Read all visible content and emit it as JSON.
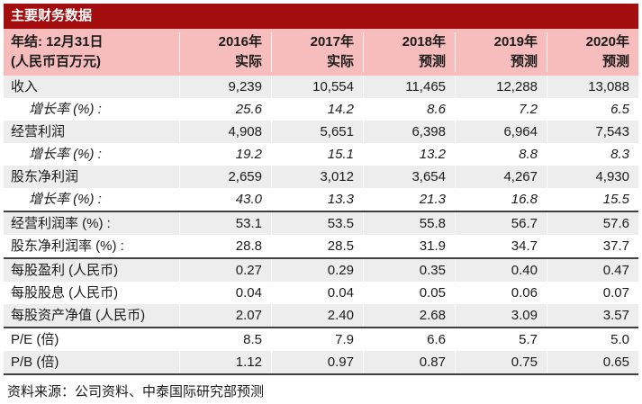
{
  "title": "主要财务数据",
  "header": {
    "label_line1": "年结: 12月31日",
    "label_line2": "(人民币百万元)",
    "columns": [
      {
        "year": "2016年",
        "status": "实际"
      },
      {
        "year": "2017年",
        "status": "实际"
      },
      {
        "year": "2018年",
        "status": "预测"
      },
      {
        "year": "2019年",
        "status": "预测"
      },
      {
        "year": "2020年",
        "status": "预测"
      }
    ]
  },
  "rows": [
    {
      "label": "收入",
      "values": [
        "9,239",
        "10,554",
        "11,465",
        "12,288",
        "13,088"
      ]
    },
    {
      "label": "增长率 (%) :",
      "values": [
        "25.6",
        "14.2",
        "8.6",
        "7.2",
        "6.5"
      ]
    },
    {
      "label": "经营利润",
      "values": [
        "4,908",
        "5,651",
        "6,398",
        "6,964",
        "7,543"
      ]
    },
    {
      "label": "增长率 (%) :",
      "values": [
        "19.2",
        "15.1",
        "13.2",
        "8.8",
        "8.3"
      ]
    },
    {
      "label": "股东净利润",
      "values": [
        "2,659",
        "3,012",
        "3,654",
        "4,267",
        "4,930"
      ]
    },
    {
      "label": "增长率 (%) :",
      "values": [
        "43.0",
        "13.3",
        "21.3",
        "16.8",
        "15.5"
      ]
    },
    {
      "label": "经营利润率 (%) :",
      "values": [
        "53.1",
        "53.5",
        "55.8",
        "56.7",
        "57.6"
      ]
    },
    {
      "label": "股东净利润率 (%) :",
      "values": [
        "28.8",
        "28.5",
        "31.9",
        "34.7",
        "37.7"
      ]
    },
    {
      "label": "每股盈利 (人民币)",
      "values": [
        "0.27",
        "0.29",
        "0.35",
        "0.40",
        "0.47"
      ]
    },
    {
      "label": "每股股息 (人民币)",
      "values": [
        "0.04",
        "0.04",
        "0.05",
        "0.06",
        "0.07"
      ]
    },
    {
      "label": "每股资产净值 (人民币)",
      "values": [
        "2.07",
        "2.40",
        "2.68",
        "3.09",
        "3.57"
      ]
    },
    {
      "label": "P/E (倍)",
      "values": [
        "8.5",
        "7.9",
        "6.6",
        "5.7",
        "5.0"
      ]
    },
    {
      "label": "P/B (倍)",
      "values": [
        "1.12",
        "0.97",
        "0.87",
        "0.75",
        "0.65"
      ]
    }
  ],
  "footer": "资料来源：公司资料、中泰国际研究部预测",
  "colors": {
    "title_bar_bg": "#A30D0D",
    "title_text": "#FFFFFF",
    "header_bg": "#F7BDBD",
    "row_stripe_bg": "#EDEDED",
    "separator_line": "#404040",
    "body_text": "#1A1A1A"
  }
}
